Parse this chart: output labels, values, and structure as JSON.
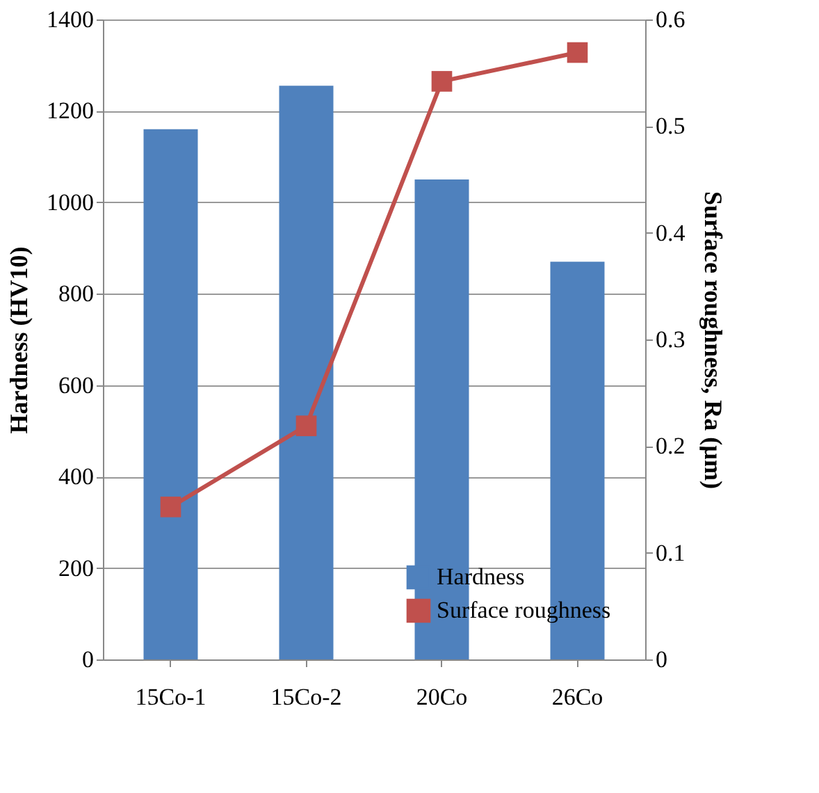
{
  "chart_data": {
    "type": "bar",
    "categories": [
      "15Co-1",
      "15Co-2",
      "20Co",
      "26Co"
    ],
    "series": [
      {
        "name": "Hardness",
        "color": "#4f81bd",
        "values": [
          1160,
          1255,
          1050,
          870
        ]
      },
      {
        "name": "Surface roughness",
        "type": "line",
        "axis": "y2",
        "color": "#c0504d",
        "values": [
          0.143,
          0.219,
          0.542,
          0.569
        ]
      }
    ],
    "ylabel": "Hardness (HV10)",
    "y2label": "Surface roughness, Ra (µm)",
    "ylim": [
      0,
      1400
    ],
    "yticks": [
      0,
      200,
      400,
      600,
      800,
      1000,
      1200,
      1400
    ],
    "y2lim": [
      0,
      0.6
    ],
    "y2ticks": [
      0,
      0.1,
      0.2,
      0.3,
      0.4,
      0.5,
      0.6
    ],
    "grid": "y",
    "legend": "bottom right",
    "marker": "square",
    "line_style": "solid"
  }
}
